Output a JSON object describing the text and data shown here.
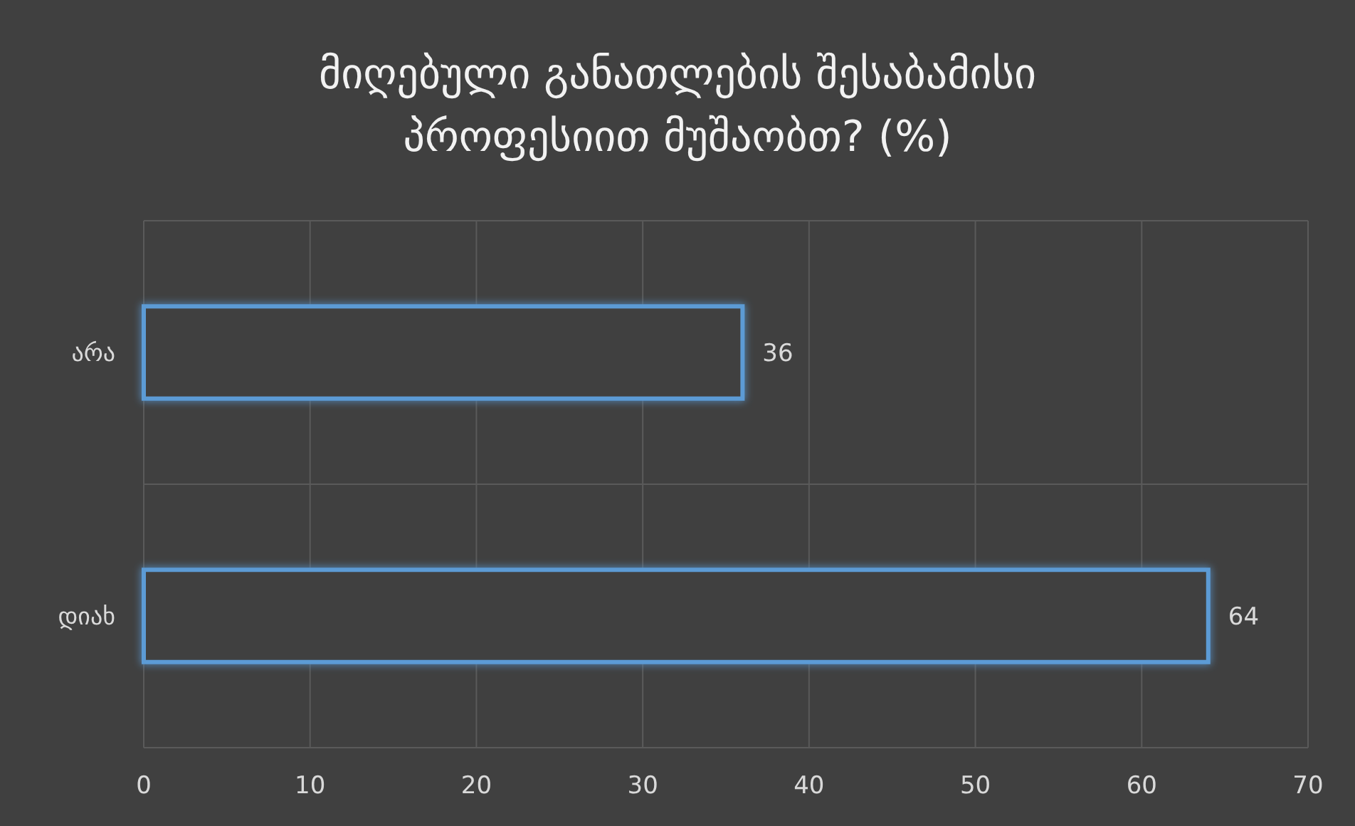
{
  "chart_data": {
    "type": "bar",
    "orientation": "horizontal",
    "title": "მიღებული განათლების შესაბამისი პროფესიით მუშაობთ? (%)",
    "categories": [
      "არა",
      "დიახ"
    ],
    "values": [
      36,
      64
    ],
    "color": "#5b9bd5",
    "data_labels": true,
    "xlim": [
      0,
      70
    ],
    "xticks": [
      0,
      10,
      20,
      30,
      40,
      50,
      60,
      70
    ],
    "grid": true
  }
}
